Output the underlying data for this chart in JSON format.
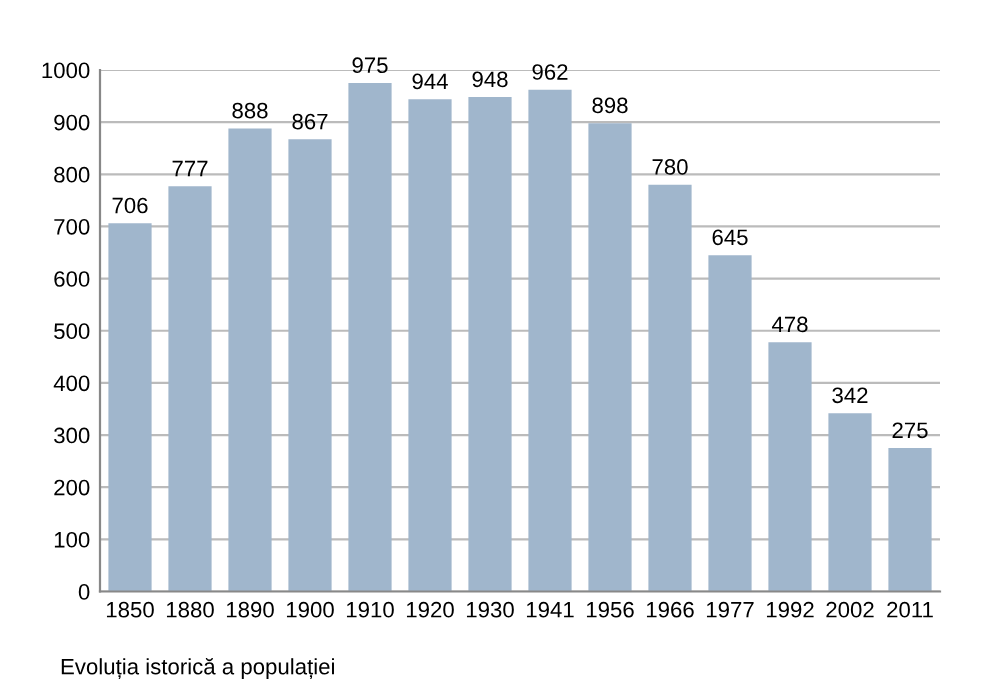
{
  "chart_data": {
    "type": "bar",
    "categories": [
      "1850",
      "1880",
      "1890",
      "1900",
      "1910",
      "1920",
      "1930",
      "1941",
      "1956",
      "1966",
      "1977",
      "1992",
      "2002",
      "2011"
    ],
    "values": [
      706,
      777,
      888,
      867,
      975,
      944,
      948,
      962,
      898,
      780,
      645,
      478,
      342,
      275
    ],
    "color": "#a0b6cc",
    "ylim": [
      0,
      1000
    ],
    "yticks": [
      0,
      100,
      200,
      300,
      400,
      500,
      600,
      700,
      800,
      900,
      1000
    ],
    "grid": "y",
    "data_labels": true,
    "annotations": [
      "Evoluția istorică a populației"
    ]
  }
}
